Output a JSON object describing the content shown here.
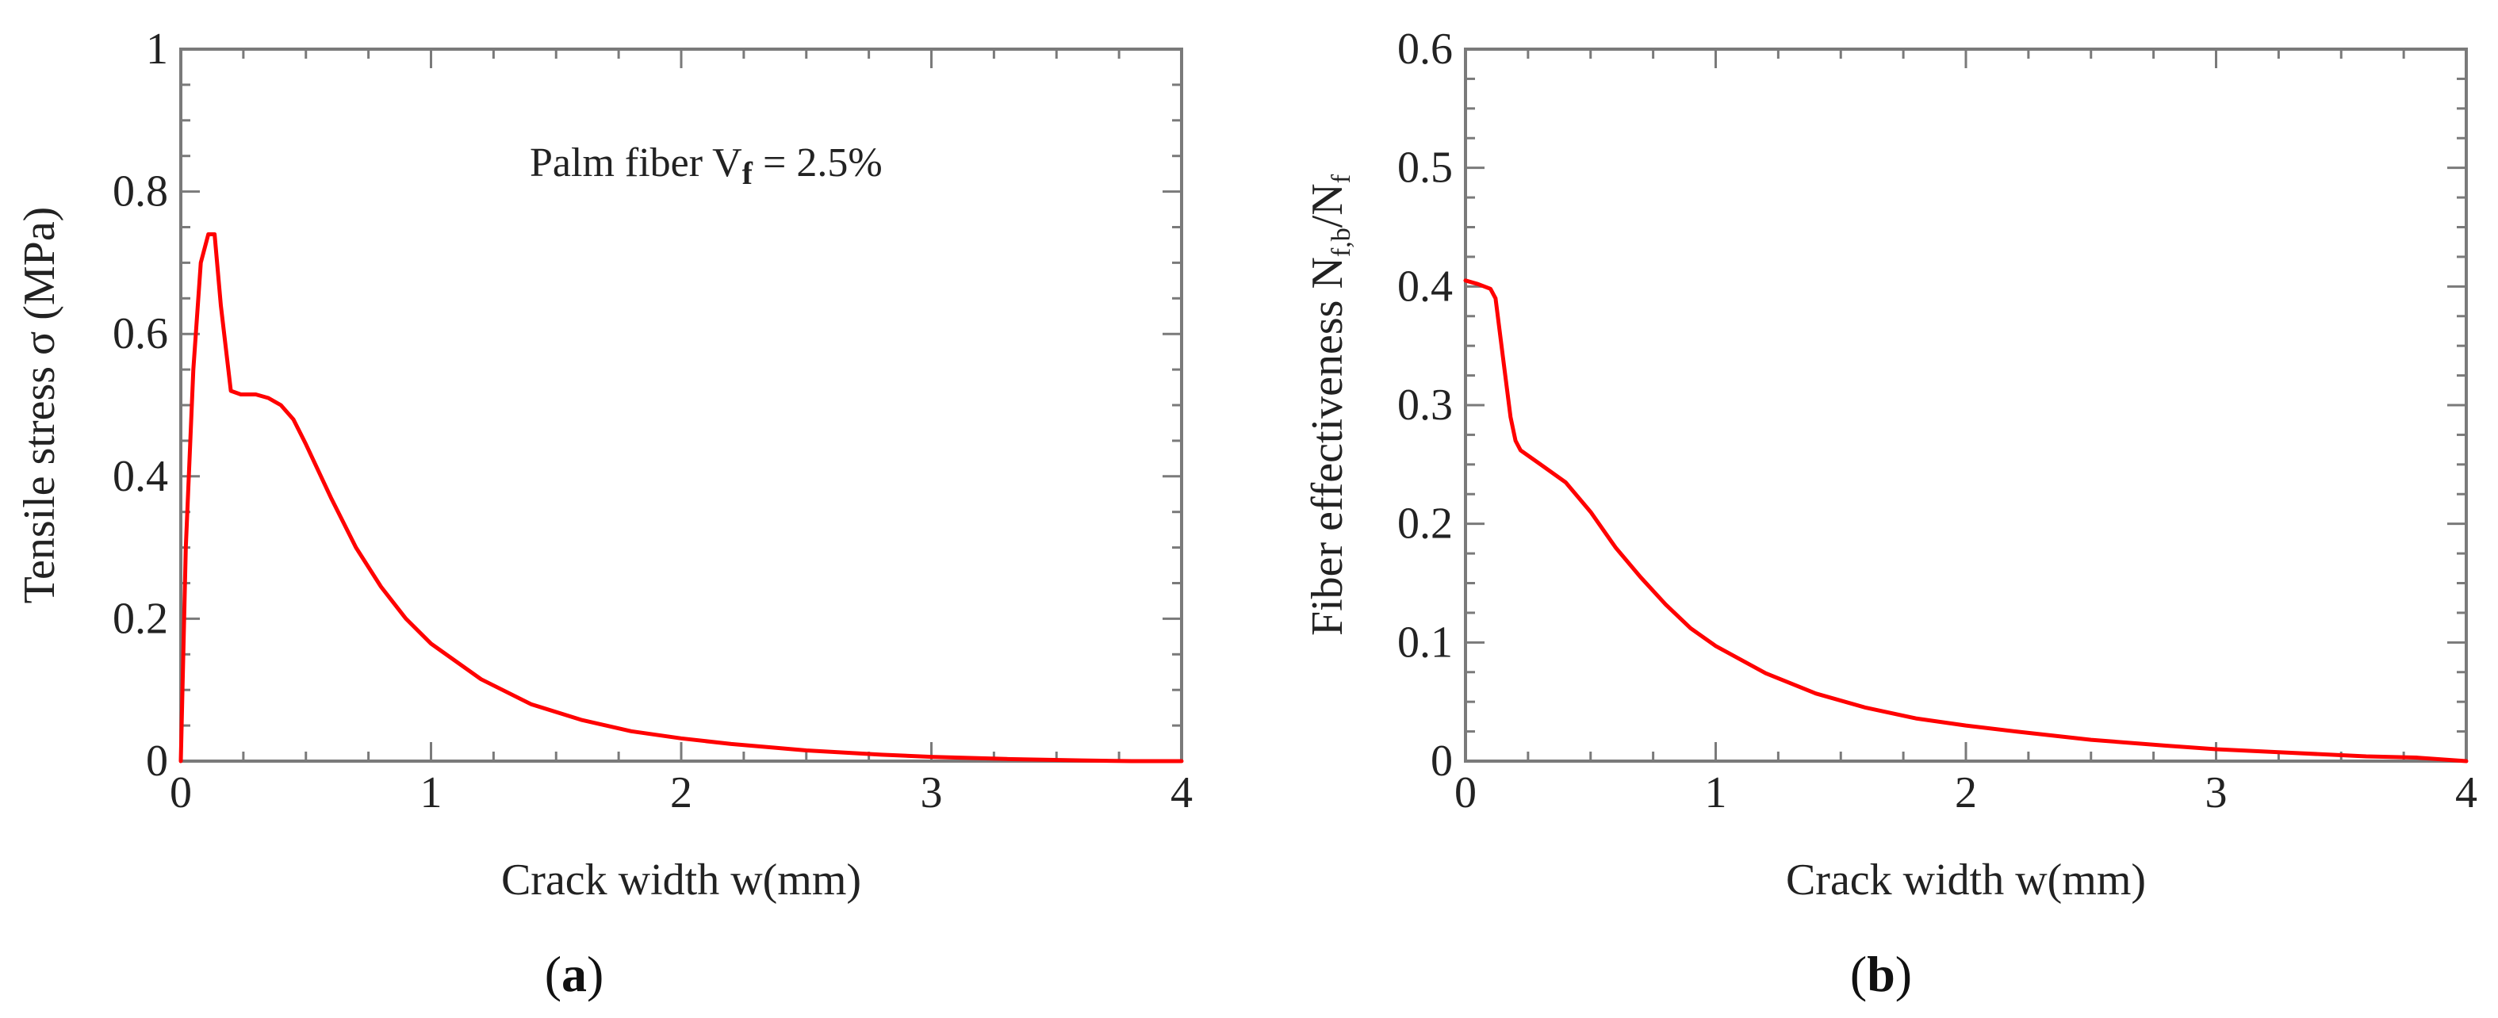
{
  "chart_data": [
    {
      "type": "line",
      "panel_label_open": "(",
      "panel_label_letter": "a",
      "panel_label_close": ")",
      "title": "",
      "xlabel": "Crack width w(mm)",
      "ylabel": "Tensile stress σ (MPa)",
      "annotation": {
        "prefix": "Palm fiber V",
        "subscript": "f",
        "suffix": " = 2.5%"
      },
      "xlim": [
        0,
        4
      ],
      "ylim": [
        0,
        1
      ],
      "xticks": [
        "0",
        "1",
        "2",
        "3",
        "4"
      ],
      "yticks": [
        "0",
        "0.2",
        "0.4",
        "0.6",
        "0.8",
        "1"
      ],
      "grid": false,
      "legend": "none",
      "series": [
        {
          "name": "Palm fiber Vf = 2.5%",
          "color": "#ff0000",
          "x": [
            0,
            0.02,
            0.05,
            0.08,
            0.11,
            0.135,
            0.16,
            0.2,
            0.24,
            0.3,
            0.35,
            0.4,
            0.45,
            0.5,
            0.6,
            0.7,
            0.8,
            0.9,
            1.0,
            1.2,
            1.4,
            1.6,
            1.8,
            2.0,
            2.2,
            2.5,
            2.8,
            3.0,
            3.3,
            3.6,
            3.8,
            4.0
          ],
          "values": [
            0,
            0.3,
            0.55,
            0.7,
            0.74,
            0.74,
            0.64,
            0.52,
            0.515,
            0.515,
            0.51,
            0.5,
            0.48,
            0.445,
            0.37,
            0.3,
            0.245,
            0.2,
            0.165,
            0.115,
            0.08,
            0.058,
            0.042,
            0.032,
            0.024,
            0.015,
            0.009,
            0.006,
            0.003,
            0.001,
            0.0,
            0.0
          ]
        }
      ]
    },
    {
      "type": "line",
      "panel_label_open": "(",
      "panel_label_letter": "b",
      "panel_label_close": ")",
      "title": "",
      "xlabel": "Crack width w(mm)",
      "ylabel": {
        "prefix": "Fiber effectiveness N",
        "sub1": "f,b",
        "mid": "/N",
        "sub2": "f"
      },
      "xlim": [
        0,
        4
      ],
      "ylim": [
        0,
        0.6
      ],
      "xticks": [
        "0",
        "1",
        "2",
        "3",
        "4"
      ],
      "yticks": [
        "0",
        "0.1",
        "0.2",
        "0.3",
        "0.4",
        "0.5",
        "0.6"
      ],
      "grid": false,
      "legend": "none",
      "series": [
        {
          "name": "Fiber effectiveness",
          "color": "#ff0000",
          "x": [
            0,
            0.05,
            0.1,
            0.12,
            0.15,
            0.18,
            0.2,
            0.22,
            0.3,
            0.4,
            0.5,
            0.6,
            0.7,
            0.8,
            0.9,
            1.0,
            1.2,
            1.4,
            1.6,
            1.8,
            2.0,
            2.2,
            2.5,
            2.8,
            3.0,
            3.3,
            3.6,
            3.8,
            4.0
          ],
          "values": [
            0.405,
            0.402,
            0.398,
            0.39,
            0.34,
            0.29,
            0.27,
            0.262,
            0.25,
            0.235,
            0.21,
            0.18,
            0.155,
            0.132,
            0.112,
            0.097,
            0.074,
            0.057,
            0.045,
            0.036,
            0.03,
            0.025,
            0.018,
            0.013,
            0.01,
            0.007,
            0.004,
            0.003,
            0.0
          ]
        }
      ]
    }
  ]
}
